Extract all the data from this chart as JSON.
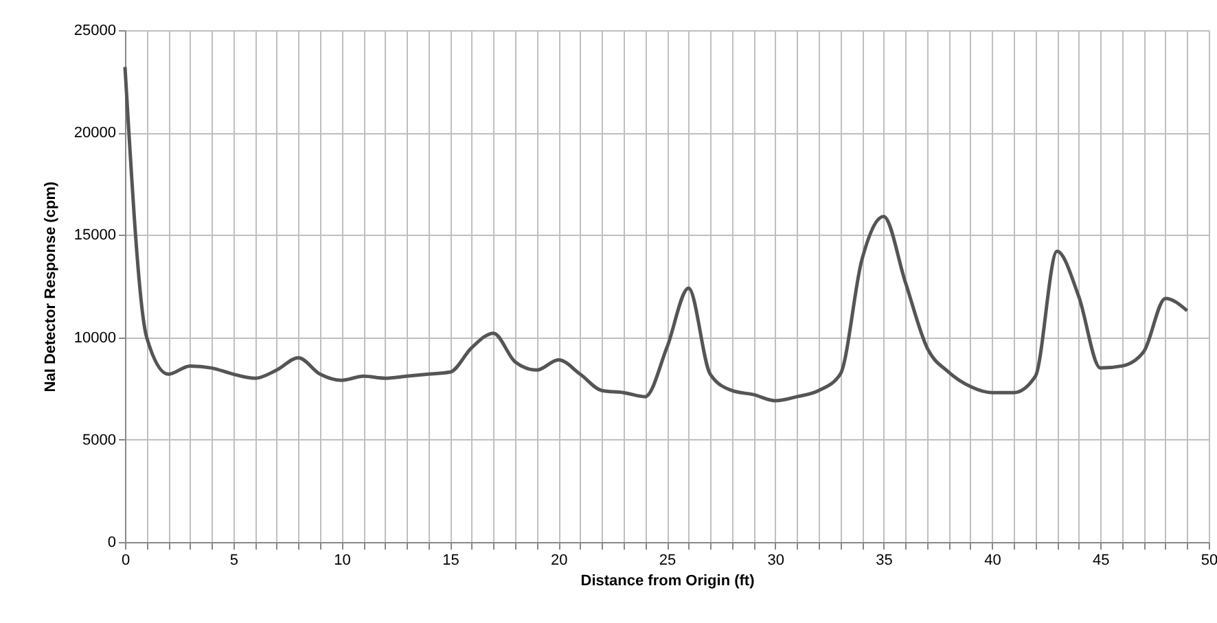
{
  "chart_data": {
    "type": "line",
    "xlabel": "Distance from Origin (ft)",
    "ylabel": "NaI Detector Response (cpm)",
    "x": [
      0,
      1,
      2,
      3,
      4,
      5,
      6,
      7,
      8,
      9,
      10,
      11,
      12,
      13,
      14,
      15,
      16,
      17,
      18,
      19,
      20,
      21,
      22,
      23,
      24,
      25,
      26,
      27,
      28,
      29,
      30,
      31,
      32,
      33,
      34,
      35,
      36,
      37,
      38,
      39,
      40,
      41,
      42,
      43,
      44,
      45,
      46,
      47,
      48,
      49
    ],
    "series": [
      {
        "color": "#555555",
        "values": [
          23200,
          10000,
          8200,
          8600,
          8500,
          8200,
          8000,
          8400,
          9000,
          8200,
          7900,
          8100,
          8000,
          8100,
          8200,
          8300,
          9500,
          10200,
          8800,
          8400,
          8900,
          8200,
          7400,
          7300,
          7100,
          9500,
          12400,
          8200,
          7400,
          7200,
          6900,
          7100,
          7400,
          8200,
          13800,
          15900,
          12700,
          9500,
          8300,
          7600,
          7300,
          7300,
          8100,
          14200,
          12000,
          8500,
          8600,
          9300,
          11900,
          11300
        ]
      }
    ],
    "xlim": [
      0,
      50
    ],
    "xticks": [
      0,
      {
        "value": 1,
        "label": null
      },
      {
        "value": 2,
        "label": null
      },
      {
        "value": 3,
        "label": null
      },
      {
        "value": 4,
        "label": null
      },
      5,
      {
        "value": 6,
        "label": null
      },
      {
        "value": 7,
        "label": null
      },
      {
        "value": 8,
        "label": null
      },
      {
        "value": 9,
        "label": null
      },
      10,
      {
        "value": 11,
        "label": null
      },
      {
        "value": 12,
        "label": null
      },
      {
        "value": 13,
        "label": null
      },
      {
        "value": 14,
        "label": null
      },
      15,
      {
        "value": 16,
        "label": null
      },
      {
        "value": 17,
        "label": null
      },
      {
        "value": 18,
        "label": null
      },
      {
        "value": 19,
        "label": null
      },
      20,
      {
        "value": 21,
        "label": null
      },
      {
        "value": 22,
        "label": null
      },
      {
        "value": 23,
        "label": null
      },
      {
        "value": 24,
        "label": null
      },
      25,
      {
        "value": 26,
        "label": null
      },
      {
        "value": 27,
        "label": null
      },
      {
        "value": 28,
        "label": null
      },
      {
        "value": 29,
        "label": null
      },
      30,
      {
        "value": 31,
        "label": null
      },
      {
        "value": 32,
        "label": null
      },
      {
        "value": 33,
        "label": null
      },
      {
        "value": 34,
        "label": null
      },
      35,
      {
        "value": 36,
        "label": null
      },
      {
        "value": 37,
        "label": null
      },
      {
        "value": 38,
        "label": null
      },
      {
        "value": 39,
        "label": null
      },
      40,
      {
        "value": 41,
        "label": null
      },
      {
        "value": 42,
        "label": null
      },
      {
        "value": 43,
        "label": null
      },
      {
        "value": 44,
        "label": null
      },
      45,
      {
        "value": 46,
        "label": null
      },
      {
        "value": 47,
        "label": null
      },
      {
        "value": 48,
        "label": null
      },
      {
        "value": 49,
        "label": null
      },
      50
    ],
    "ylim": [
      0,
      25000
    ],
    "yticks": [
      0,
      5000,
      10000,
      15000,
      20000,
      25000
    ],
    "grid": true,
    "marker": "none",
    "line_style": "solid"
  }
}
